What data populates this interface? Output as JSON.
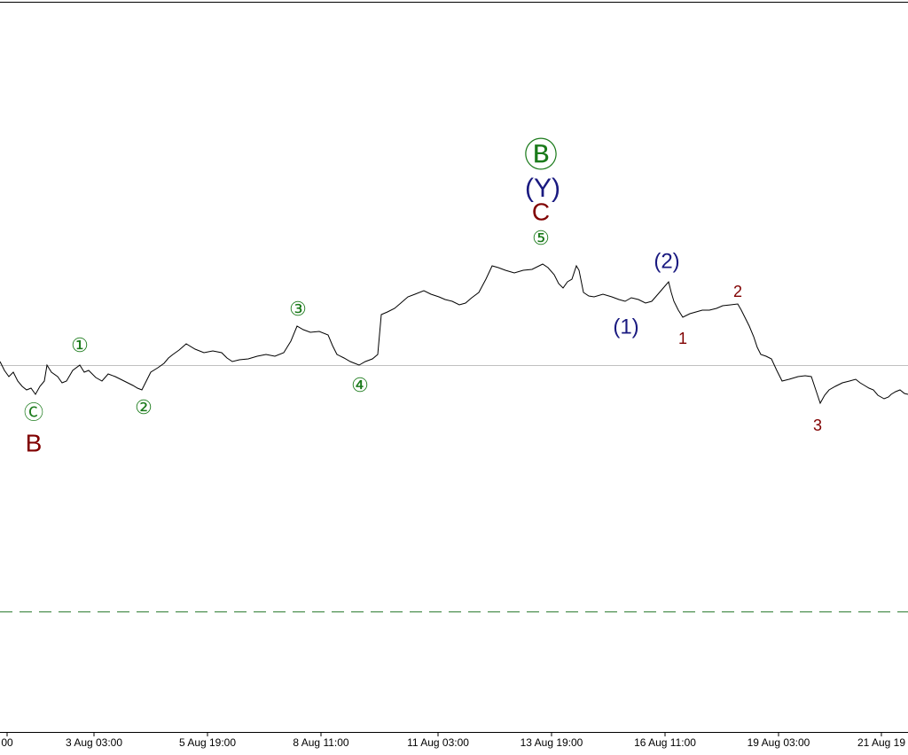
{
  "x_axis_labels": [
    "00",
    "3 Aug 03:00",
    "5 Aug 19:00",
    "8 Aug 11:00",
    "11 Aug 03:00",
    "13 Aug 19:00",
    "16 Aug 11:00",
    "19 Aug 03:00",
    "21 Aug 19"
  ],
  "wave_labels": [
    {
      "text": "Ⓒ",
      "color": "#1a7a1a"
    },
    {
      "text": "B",
      "color": "#800000"
    },
    {
      "text": "①",
      "color": "#1a7a1a"
    },
    {
      "text": "②",
      "color": "#1a7a1a"
    },
    {
      "text": "③",
      "color": "#1a7a1a"
    },
    {
      "text": "④",
      "color": "#1a7a1a"
    },
    {
      "text": "⑤",
      "color": "#1a7a1a"
    },
    {
      "text": "Ⓑ",
      "color": "#1a7a1a"
    },
    {
      "text": "(Y)",
      "color": "#1a1a80"
    },
    {
      "text": "C",
      "color": "#800000"
    },
    {
      "text": "(1)",
      "color": "#1a1a80"
    },
    {
      "text": "(2)",
      "color": "#1a1a80"
    },
    {
      "text": "1",
      "color": "#800000"
    },
    {
      "text": "2",
      "color": "#800000"
    },
    {
      "text": "3",
      "color": "#800000"
    }
  ]
}
